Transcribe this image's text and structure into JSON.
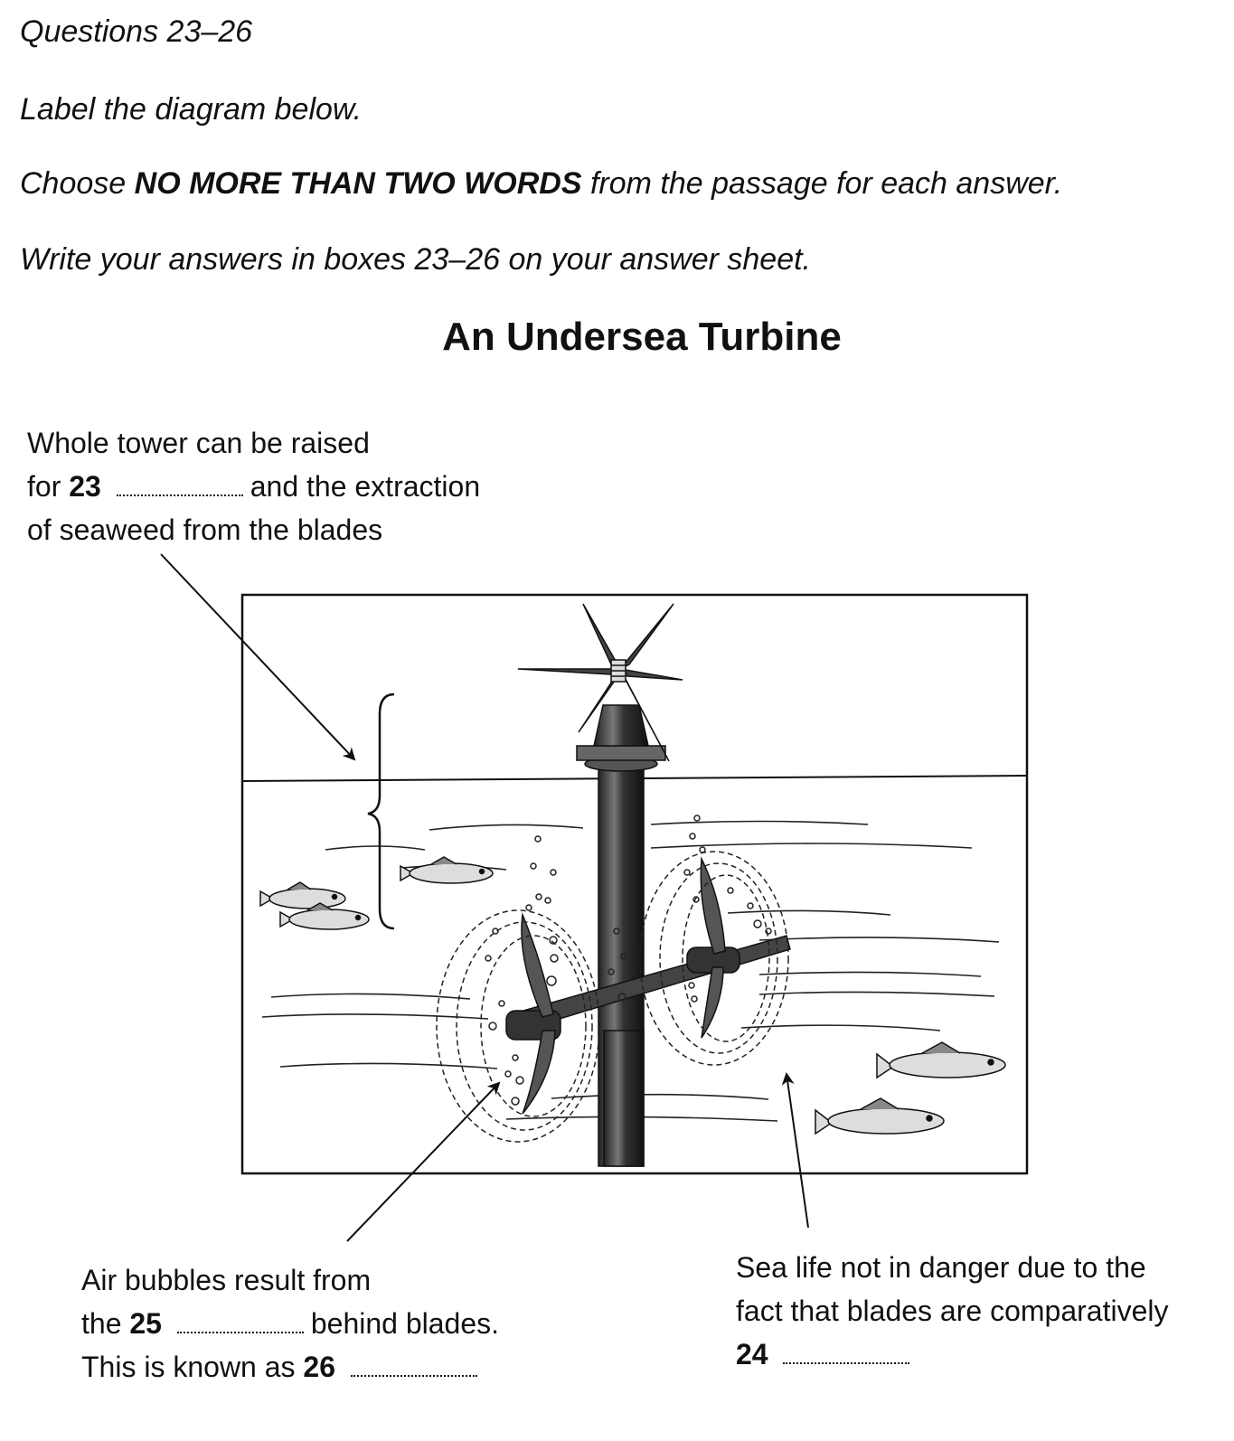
{
  "header": {
    "questions": "Questions 23–26",
    "instruction_label": "Label the diagram below.",
    "instruction_choose_prefix": "Choose",
    "instruction_choose_bold": "NO MORE THAN TWO WORDS",
    "instruction_choose_suffix": "from the passage for each answer.",
    "instruction_write": "Write your answers in boxes 23–26 on your answer sheet."
  },
  "diagram": {
    "title": "An Undersea Turbine",
    "label_23": {
      "line1": "Whole tower can be raised",
      "line2_prefix": "for",
      "number": "23",
      "line2_suffix": "and the extraction",
      "line3": "of seaweed from the blades"
    },
    "label_25_26": {
      "line1": "Air bubbles result from",
      "line2_prefix": "the",
      "number_25": "25",
      "line2_suffix": "behind blades.",
      "line3_prefix": "This is known as",
      "number_26": "26"
    },
    "label_24": {
      "line1": "Sea life not in danger due to the",
      "line2": "fact that blades are comparatively",
      "number": "24"
    }
  }
}
